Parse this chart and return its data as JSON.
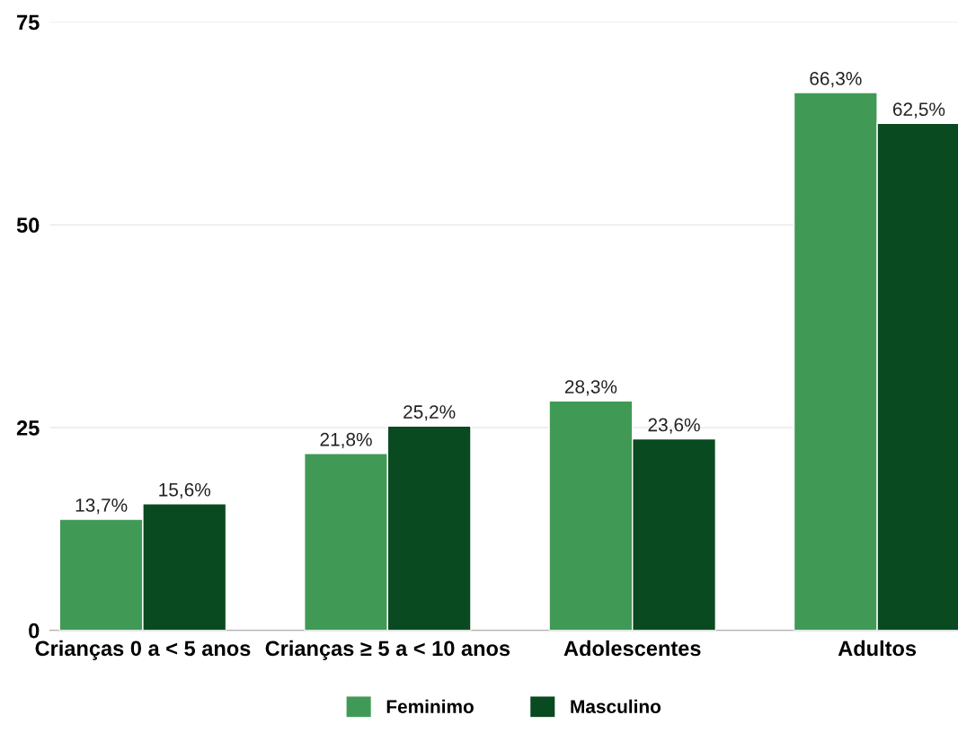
{
  "chart_data": {
    "type": "bar",
    "categories": [
      "Crianças 0 a < 5 anos",
      "Crianças ≥ 5 a < 10 anos",
      "Adolescentes",
      "Adultos"
    ],
    "series": [
      {
        "name": "Feminimo",
        "color": "#409a55",
        "values": [
          13.7,
          21.8,
          28.3,
          66.3
        ],
        "value_labels": [
          "13,7%",
          "21,8%",
          "28,3%",
          "66,3%"
        ]
      },
      {
        "name": "Masculino",
        "color": "#0a4a20",
        "values": [
          15.6,
          25.2,
          23.6,
          62.5
        ],
        "value_labels": [
          "15,6%",
          "25,2%",
          "23,6%",
          "62,5%"
        ]
      }
    ],
    "ylim": [
      0,
      75
    ],
    "yticks": [
      0,
      25,
      50,
      75
    ],
    "grid": "y",
    "legend": "bottom"
  }
}
